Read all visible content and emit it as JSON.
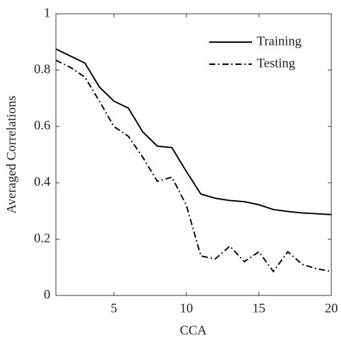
{
  "chart_data": {
    "type": "line",
    "x_label": "CCA",
    "y_label": "Averaged Correlations",
    "x": [
      1,
      2,
      3,
      4,
      5,
      6,
      7,
      8,
      9,
      10,
      11,
      12,
      13,
      14,
      15,
      16,
      17,
      18,
      19,
      20
    ],
    "series": [
      {
        "name": "Training",
        "color": "#000000",
        "dash": "solid",
        "values": [
          0.875,
          0.85,
          0.825,
          0.74,
          0.69,
          0.665,
          0.58,
          0.53,
          0.525,
          0.44,
          0.36,
          0.345,
          0.337,
          0.333,
          0.322,
          0.305,
          0.298,
          0.293,
          0.29,
          0.287
        ]
      },
      {
        "name": "Testing",
        "color": "#000000",
        "dash": "dashdot",
        "values": [
          0.835,
          0.81,
          0.775,
          0.69,
          0.6,
          0.565,
          0.49,
          0.405,
          0.42,
          0.32,
          0.14,
          0.13,
          0.175,
          0.12,
          0.155,
          0.085,
          0.155,
          0.11,
          0.095,
          0.085
        ]
      }
    ],
    "xlim": [
      1,
      20
    ],
    "ylim": [
      0,
      1
    ],
    "xticks": [
      5,
      10,
      15,
      20
    ],
    "yticks": [
      0,
      0.2,
      0.4,
      0.6,
      0.8,
      1
    ],
    "legend": "upper right",
    "grid": false
  }
}
